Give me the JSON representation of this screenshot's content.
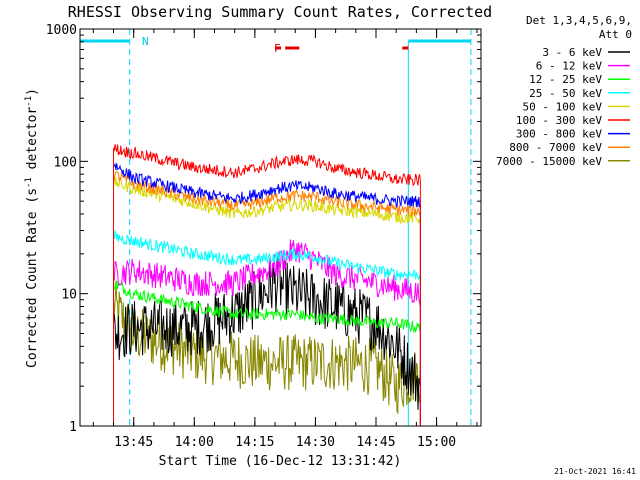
{
  "chart_data": {
    "type": "line",
    "title": "RHESSI Observing Summary Count Rates, Corrected",
    "xlabel": "Start Time (16-Dec-12 13:31:42)",
    "ylabel_main": "Corrected Count Rate (s",
    "ylabel_sup1": "-1",
    "ylabel_mid": " detector",
    "ylabel_sup2": "-1",
    "ylabel_end": ")",
    "y_scale": "log",
    "ylim": [
      1,
      1000
    ],
    "xlim": [
      "13:31:42",
      "15:11:00"
    ],
    "y_ticks": [
      {
        "v": 1,
        "label": "1"
      },
      {
        "v": 10,
        "label": "10"
      },
      {
        "v": 100,
        "label": "100"
      },
      {
        "v": 1000,
        "label": "1000"
      }
    ],
    "x_ticks": [
      {
        "t": "13:45",
        "label": "13:45"
      },
      {
        "t": "14:00",
        "label": "14:00"
      },
      {
        "t": "14:15",
        "label": "14:15"
      },
      {
        "t": "14:30",
        "label": "14:30"
      },
      {
        "t": "14:45",
        "label": "14:45"
      },
      {
        "t": "15:00",
        "label": "15:00"
      }
    ],
    "legend": {
      "placement": "outside-right",
      "header_line1": "Det 1,3,4,5,6,9,",
      "header_line2": "Att 0"
    },
    "annotations": {
      "night_label": "N",
      "flare_label": "F",
      "timestamp": "21-Oct-2021 16:41"
    },
    "night": [
      {
        "from": "13:31:42",
        "to": "13:44:00",
        "dashed_edge": "13:44:00"
      },
      {
        "from": "14:53:00",
        "to": "15:08:30",
        "dashed_edge": "15:08:30"
      }
    ],
    "flare_bars": [
      {
        "from": "14:20:00",
        "to": "14:21:30"
      },
      {
        "from": "14:22:30",
        "to": "14:26:00"
      },
      {
        "from": "14:51:30",
        "to": "14:53:00"
      }
    ],
    "series": [
      {
        "name": "3 - 6 keV",
        "color": "#000000",
        "t": [
          "13:40",
          "13:45",
          "14:00",
          "14:10",
          "14:15",
          "14:20",
          "14:25",
          "14:30",
          "14:35",
          "14:45",
          "14:50",
          "14:56"
        ],
        "v": [
          5,
          5.5,
          5.5,
          7,
          9,
          12,
          10,
          9,
          8,
          6,
          4,
          2
        ]
      },
      {
        "name": "6 - 12 keV",
        "color": "#ff00ff",
        "t": [
          "13:40",
          "13:45",
          "14:00",
          "14:10",
          "14:15",
          "14:20",
          "14:25",
          "14:30",
          "14:35",
          "14:45",
          "14:50",
          "14:56"
        ],
        "v": [
          14,
          15,
          12,
          12,
          14,
          16,
          22,
          18,
          14,
          12,
          11,
          10
        ]
      },
      {
        "name": "12 - 25 keV",
        "color": "#00ff00",
        "t": [
          "13:40",
          "13:45",
          "14:00",
          "14:10",
          "14:15",
          "14:20",
          "14:25",
          "14:30",
          "14:35",
          "14:45",
          "14:50",
          "14:56"
        ],
        "v": [
          12,
          10,
          8,
          7,
          7,
          7,
          7,
          6.5,
          6.5,
          6,
          6,
          5.5
        ]
      },
      {
        "name": "25 - 50 keV",
        "color": "#00ffff",
        "t": [
          "13:40",
          "13:45",
          "14:00",
          "14:10",
          "14:15",
          "14:20",
          "14:25",
          "14:30",
          "14:35",
          "14:45",
          "14:50",
          "14:56"
        ],
        "v": [
          27,
          25,
          20,
          18,
          18,
          19,
          20,
          19,
          17,
          15,
          14,
          14
        ]
      },
      {
        "name": "50 - 100 keV",
        "color": "#d8d800",
        "t": [
          "13:40",
          "13:45",
          "14:00",
          "14:10",
          "14:15",
          "14:20",
          "14:25",
          "14:30",
          "14:35",
          "14:45",
          "14:50",
          "14:56"
        ],
        "v": [
          70,
          62,
          48,
          40,
          42,
          45,
          47,
          46,
          43,
          40,
          38,
          37
        ]
      },
      {
        "name": "100 - 300 keV",
        "color": "#ff0000",
        "t": [
          "13:40",
          "13:45",
          "14:00",
          "14:10",
          "14:15",
          "14:20",
          "14:25",
          "14:30",
          "14:35",
          "14:45",
          "14:50",
          "14:56"
        ],
        "v": [
          125,
          115,
          90,
          82,
          88,
          97,
          103,
          100,
          88,
          78,
          73,
          72
        ]
      },
      {
        "name": "300 - 800 keV",
        "color": "#0000ff",
        "t": [
          "13:40",
          "13:45",
          "14:00",
          "14:10",
          "14:15",
          "14:20",
          "14:25",
          "14:30",
          "14:35",
          "14:45",
          "14:50",
          "14:56"
        ],
        "v": [
          95,
          75,
          58,
          52,
          56,
          62,
          65,
          63,
          57,
          52,
          50,
          50
        ]
      },
      {
        "name": "800 - 7000 keV",
        "color": "#ff8000",
        "t": [
          "13:40",
          "13:45",
          "14:00",
          "14:10",
          "14:15",
          "14:20",
          "14:25",
          "14:30",
          "14:35",
          "14:45",
          "14:50",
          "14:56"
        ],
        "v": [
          80,
          68,
          52,
          46,
          48,
          53,
          55,
          54,
          49,
          45,
          43,
          42
        ]
      },
      {
        "name": "7000 - 15000 keV",
        "color": "#888800",
        "t": [
          "13:40",
          "13:45",
          "14:00",
          "14:10",
          "14:15",
          "14:20",
          "14:25",
          "14:30",
          "14:35",
          "14:45",
          "14:50",
          "14:56"
        ],
        "v": [
          8,
          5,
          3.5,
          3.2,
          3,
          3,
          3,
          3,
          3,
          2.8,
          2,
          2.5
        ]
      }
    ]
  }
}
